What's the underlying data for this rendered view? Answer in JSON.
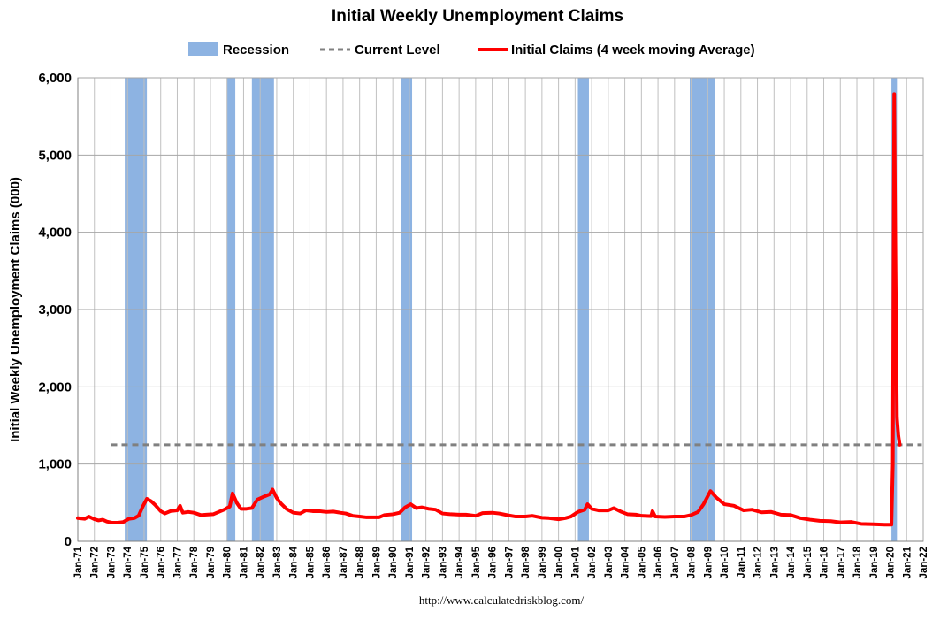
{
  "chart_data": {
    "type": "line",
    "title": "Initial Weekly Unemployment Claims",
    "ylabel": "Initial Weekly Unemployment Claims (000)",
    "xlabel": "",
    "source": "http://www.calculatedriskblog.com/",
    "ylim": [
      0,
      6000
    ],
    "yticks": [
      0,
      1000,
      2000,
      3000,
      4000,
      5000,
      6000
    ],
    "ytick_labels": [
      "0",
      "1,000",
      "2,000",
      "3,000",
      "4,000",
      "5,000",
      "6,000"
    ],
    "xlim": [
      "1971-01",
      "2022-01"
    ],
    "xtick_labels": [
      "Jan-71",
      "Jan-72",
      "Jan-73",
      "Jan-74",
      "Jan-75",
      "Jan-76",
      "Jan-77",
      "Jan-78",
      "Jan-79",
      "Jan-80",
      "Jan-81",
      "Jan-82",
      "Jan-83",
      "Jan-84",
      "Jan-85",
      "Jan-86",
      "Jan-87",
      "Jan-88",
      "Jan-89",
      "Jan-90",
      "Jan-91",
      "Jan-92",
      "Jan-93",
      "Jan-94",
      "Jan-95",
      "Jan-96",
      "Jan-97",
      "Jan-98",
      "Jan-99",
      "Jan-00",
      "Jan-01",
      "Jan-02",
      "Jan-03",
      "Jan-04",
      "Jan-05",
      "Jan-06",
      "Jan-07",
      "Jan-08",
      "Jan-09",
      "Jan-10",
      "Jan-11",
      "Jan-12",
      "Jan-13",
      "Jan-14",
      "Jan-15",
      "Jan-16",
      "Jan-17",
      "Jan-18",
      "Jan-19",
      "Jan-20",
      "Jan-21",
      "Jan-22"
    ],
    "grid": true,
    "legend": {
      "placement": "top",
      "entries": [
        {
          "label": "Recession",
          "kind": "band",
          "color": "#8db3e2"
        },
        {
          "label": "Current Level",
          "kind": "dashed",
          "color": "#808080"
        },
        {
          "label": "Initial Claims (4 week moving Average)",
          "kind": "line",
          "color": "#ff0000"
        }
      ]
    },
    "recessions": [
      {
        "start": "1973-11",
        "end": "1975-03"
      },
      {
        "start": "1980-01",
        "end": "1980-07"
      },
      {
        "start": "1981-07",
        "end": "1982-11"
      },
      {
        "start": "1990-07",
        "end": "1991-03"
      },
      {
        "start": "2001-03",
        "end": "2001-11"
      },
      {
        "start": "2007-12",
        "end": "2009-06"
      },
      {
        "start": "2020-02",
        "end": "2020-06"
      }
    ],
    "current_level": {
      "value": 1250,
      "start": "1973-01",
      "end": "2021-12"
    },
    "series": [
      {
        "name": "Initial Claims (4 week moving Average)",
        "color": "#ff0000",
        "points": [
          [
            "1971-01",
            300
          ],
          [
            "1971-06",
            290
          ],
          [
            "1971-09",
            320
          ],
          [
            "1972-01",
            285
          ],
          [
            "1972-04",
            270
          ],
          [
            "1972-07",
            280
          ],
          [
            "1972-10",
            255
          ],
          [
            "1973-02",
            240
          ],
          [
            "1973-06",
            240
          ],
          [
            "1973-10",
            250
          ],
          [
            "1974-02",
            290
          ],
          [
            "1974-06",
            300
          ],
          [
            "1974-09",
            330
          ],
          [
            "1974-12",
            450
          ],
          [
            "1975-03",
            550
          ],
          [
            "1975-06",
            520
          ],
          [
            "1975-09",
            470
          ],
          [
            "1976-01",
            390
          ],
          [
            "1976-04",
            360
          ],
          [
            "1976-08",
            390
          ],
          [
            "1977-01",
            400
          ],
          [
            "1977-03",
            460
          ],
          [
            "1977-05",
            370
          ],
          [
            "1977-09",
            380
          ],
          [
            "1978-01",
            370
          ],
          [
            "1978-06",
            340
          ],
          [
            "1978-10",
            345
          ],
          [
            "1979-03",
            350
          ],
          [
            "1979-07",
            380
          ],
          [
            "1979-11",
            410
          ],
          [
            "1980-03",
            450
          ],
          [
            "1980-05",
            620
          ],
          [
            "1980-08",
            500
          ],
          [
            "1980-11",
            420
          ],
          [
            "1981-03",
            420
          ],
          [
            "1981-07",
            430
          ],
          [
            "1981-11",
            540
          ],
          [
            "1982-04",
            580
          ],
          [
            "1982-08",
            610
          ],
          [
            "1982-10",
            670
          ],
          [
            "1983-01",
            560
          ],
          [
            "1983-04",
            490
          ],
          [
            "1983-08",
            420
          ],
          [
            "1984-01",
            370
          ],
          [
            "1984-06",
            360
          ],
          [
            "1984-10",
            400
          ],
          [
            "1985-03",
            390
          ],
          [
            "1985-08",
            390
          ],
          [
            "1986-01",
            380
          ],
          [
            "1986-06",
            385
          ],
          [
            "1986-11",
            370
          ],
          [
            "1987-03",
            360
          ],
          [
            "1987-08",
            330
          ],
          [
            "1988-01",
            320
          ],
          [
            "1988-06",
            310
          ],
          [
            "1988-11",
            310
          ],
          [
            "1989-03",
            310
          ],
          [
            "1989-07",
            340
          ],
          [
            "1990-01",
            350
          ],
          [
            "1990-06",
            370
          ],
          [
            "1990-10",
            440
          ],
          [
            "1991-02",
            480
          ],
          [
            "1991-06",
            430
          ],
          [
            "1991-10",
            440
          ],
          [
            "1992-03",
            420
          ],
          [
            "1992-08",
            410
          ],
          [
            "1993-01",
            360
          ],
          [
            "1993-07",
            350
          ],
          [
            "1994-01",
            345
          ],
          [
            "1994-06",
            345
          ],
          [
            "1995-01",
            330
          ],
          [
            "1995-06",
            365
          ],
          [
            "1996-01",
            370
          ],
          [
            "1996-06",
            360
          ],
          [
            "1997-01",
            335
          ],
          [
            "1997-06",
            320
          ],
          [
            "1998-01",
            320
          ],
          [
            "1998-06",
            330
          ],
          [
            "1999-01",
            305
          ],
          [
            "1999-06",
            300
          ],
          [
            "2000-01",
            285
          ],
          [
            "2000-06",
            300
          ],
          [
            "2000-10",
            320
          ],
          [
            "2001-03",
            380
          ],
          [
            "2001-08",
            410
          ],
          [
            "2001-10",
            480
          ],
          [
            "2002-01",
            420
          ],
          [
            "2002-06",
            400
          ],
          [
            "2003-01",
            400
          ],
          [
            "2003-05",
            430
          ],
          [
            "2003-10",
            385
          ],
          [
            "2004-03",
            350
          ],
          [
            "2004-09",
            345
          ],
          [
            "2005-01",
            330
          ],
          [
            "2005-08",
            325
          ],
          [
            "2005-09",
            390
          ],
          [
            "2005-11",
            320
          ],
          [
            "2006-06",
            315
          ],
          [
            "2007-01",
            320
          ],
          [
            "2007-08",
            320
          ],
          [
            "2008-01",
            340
          ],
          [
            "2008-06",
            380
          ],
          [
            "2008-10",
            480
          ],
          [
            "2009-03",
            650
          ],
          [
            "2009-07",
            570
          ],
          [
            "2010-01",
            480
          ],
          [
            "2010-08",
            460
          ],
          [
            "2011-03",
            400
          ],
          [
            "2011-09",
            410
          ],
          [
            "2012-04",
            375
          ],
          [
            "2012-11",
            380
          ],
          [
            "2013-06",
            345
          ],
          [
            "2014-01",
            340
          ],
          [
            "2014-08",
            300
          ],
          [
            "2015-03",
            280
          ],
          [
            "2015-10",
            265
          ],
          [
            "2016-06",
            260
          ],
          [
            "2017-01",
            245
          ],
          [
            "2017-09",
            250
          ],
          [
            "2018-04",
            225
          ],
          [
            "2019-01",
            220
          ],
          [
            "2019-09",
            215
          ],
          [
            "2020-02",
            215
          ],
          [
            "2020-03",
            1000
          ],
          [
            "2020-04",
            5790
          ],
          [
            "2020-05",
            3500
          ],
          [
            "2020-06",
            1600
          ],
          [
            "2020-07",
            1370
          ],
          [
            "2020-08",
            1250
          ]
        ]
      }
    ]
  }
}
